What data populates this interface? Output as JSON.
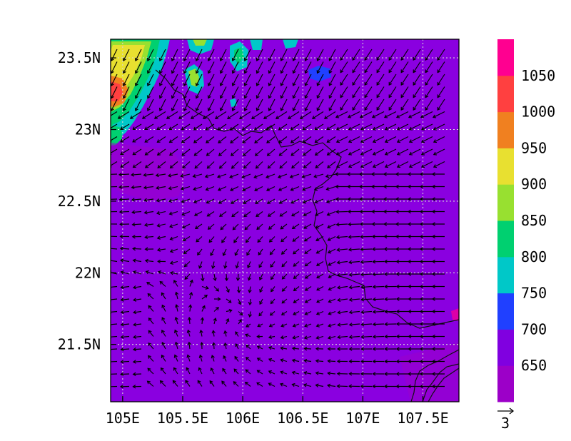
{
  "map": {
    "type": "filled-contour-with-wind-vectors",
    "lon_range": [
      104.9,
      107.8
    ],
    "lat_range": [
      21.1,
      23.63
    ],
    "background_level_color": "#8a00e0",
    "grid": {
      "style": "dotted",
      "color": "#d8d8d8"
    },
    "x_ticks": [
      {
        "value": 105.0,
        "label": "105E"
      },
      {
        "value": 105.5,
        "label": "105.5E"
      },
      {
        "value": 106.0,
        "label": "106E"
      },
      {
        "value": 106.5,
        "label": "106.5E"
      },
      {
        "value": 107.0,
        "label": "107E"
      },
      {
        "value": 107.5,
        "label": "107.5E"
      }
    ],
    "y_ticks": [
      {
        "value": 21.5,
        "label": "21.5N"
      },
      {
        "value": 22.0,
        "label": "22N"
      },
      {
        "value": 22.5,
        "label": "22.5N"
      },
      {
        "value": 23.0,
        "label": "23N"
      },
      {
        "value": 23.5,
        "label": "23.5N"
      }
    ]
  },
  "colorbar": {
    "bands": [
      "#9c00c8",
      "#8000e0",
      "#2040ff",
      "#00c8c8",
      "#00d070",
      "#98e030",
      "#e8e030",
      "#f08020",
      "#ff4040",
      "#ff0090"
    ],
    "labels": [
      "650",
      "700",
      "750",
      "800",
      "850",
      "900",
      "950",
      "1000",
      "1050"
    ]
  },
  "vector_legend": {
    "label": "3"
  }
}
